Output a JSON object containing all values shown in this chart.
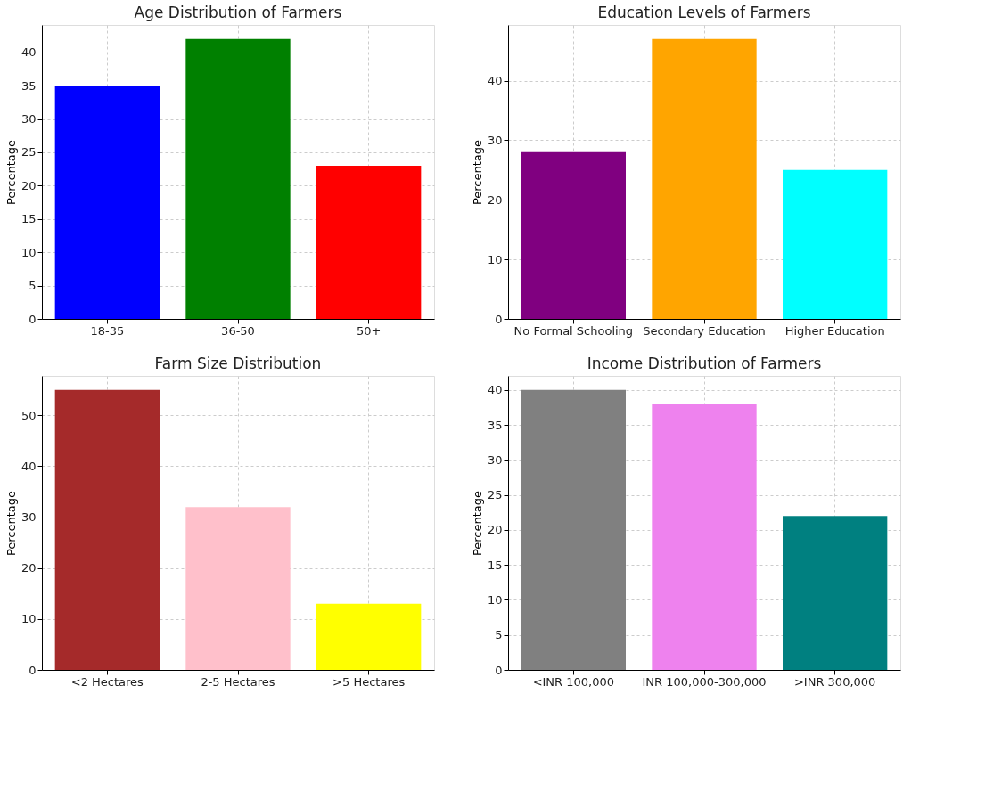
{
  "chart_data": [
    {
      "type": "bar",
      "title": "Age Distribution of Farmers",
      "ylabel": "Percentage",
      "categories": [
        "18-35",
        "36-50",
        "50+"
      ],
      "values": [
        35,
        42,
        23
      ],
      "colors": [
        "#0000ff",
        "#008000",
        "#ff0000"
      ],
      "ylim": [
        0,
        44.1
      ],
      "yticks": [
        0,
        5,
        10,
        15,
        20,
        25,
        30,
        35,
        40
      ],
      "grid": true
    },
    {
      "type": "bar",
      "title": "Education Levels of Farmers",
      "ylabel": "Percentage",
      "categories": [
        "No Formal Schooling",
        "Secondary Education",
        "Higher Education"
      ],
      "values": [
        28,
        47,
        25
      ],
      "colors": [
        "#800080",
        "#ffa500",
        "#00ffff"
      ],
      "ylim": [
        0,
        49.35
      ],
      "yticks": [
        0,
        10,
        20,
        30,
        40
      ],
      "grid": true
    },
    {
      "type": "bar",
      "title": "Farm Size Distribution",
      "ylabel": "Percentage",
      "categories": [
        "<2 Hectares",
        "2-5 Hectares",
        ">5 Hectares"
      ],
      "values": [
        55,
        32,
        13
      ],
      "colors": [
        "#a52a2a",
        "#ffc0cb",
        "#ffff00"
      ],
      "ylim": [
        0,
        57.75
      ],
      "yticks": [
        0,
        10,
        20,
        30,
        40,
        50
      ],
      "grid": true
    },
    {
      "type": "bar",
      "title": "Income Distribution of Farmers",
      "ylabel": "Percentage",
      "categories": [
        "<INR 100,000",
        "INR 100,000-300,000",
        ">INR 300,000"
      ],
      "values": [
        40,
        38,
        22
      ],
      "colors": [
        "#808080",
        "#ee82ee",
        "#008080"
      ],
      "ylim": [
        0,
        42
      ],
      "yticks": [
        0,
        5,
        10,
        15,
        20,
        25,
        30,
        35,
        40
      ],
      "grid": true
    }
  ]
}
